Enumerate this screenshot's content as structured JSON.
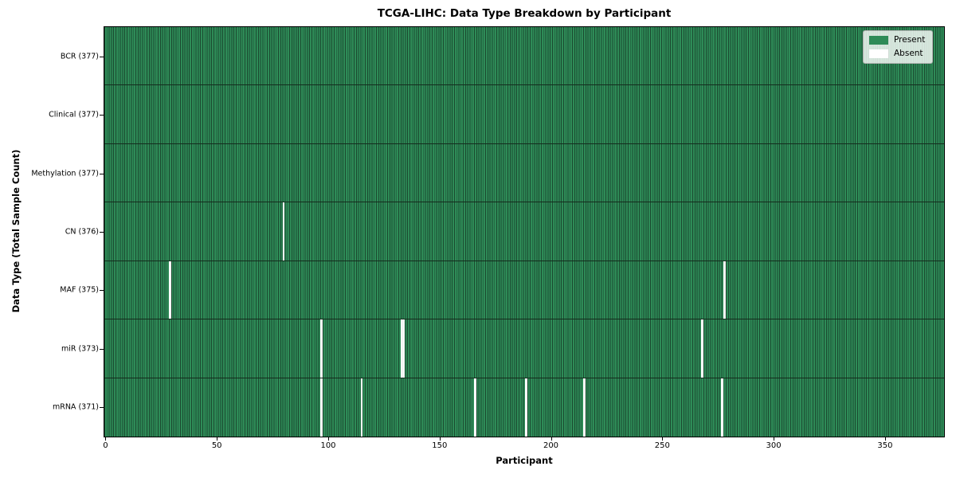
{
  "chart_data": {
    "type": "heatmap",
    "title": "TCGA-LIHC: Data Type Breakdown by Participant",
    "xlabel": "Participant",
    "ylabel": "Data Type (Total Sample Count)",
    "n_participants": 377,
    "xlim": [
      -0.5,
      376.5
    ],
    "x_ticks": [
      0,
      50,
      100,
      150,
      200,
      250,
      300,
      350
    ],
    "grid": "cell-edges",
    "legend": {
      "position": "upper right",
      "entries": [
        "Present",
        "Absent"
      ]
    },
    "colors": {
      "present": "#2e8b57",
      "present_edge": "#1b4a30",
      "absent": "#ffffff",
      "row_divider": "#142c1d"
    },
    "rows": [
      {
        "label": "BCR (377)",
        "data_type": "BCR",
        "total": 377,
        "absent_participants": []
      },
      {
        "label": "Clinical (377)",
        "data_type": "Clinical",
        "total": 377,
        "absent_participants": []
      },
      {
        "label": "Methylation (377)",
        "data_type": "Methylation",
        "total": 377,
        "absent_participants": []
      },
      {
        "label": "CN (376)",
        "data_type": "CN",
        "total": 376,
        "absent_participants": [
          80
        ]
      },
      {
        "label": "MAF (375)",
        "data_type": "MAF",
        "total": 375,
        "absent_participants": [
          29,
          278
        ]
      },
      {
        "label": "miR (373)",
        "data_type": "miR",
        "total": 373,
        "absent_participants": [
          97,
          133,
          134,
          268
        ]
      },
      {
        "label": "mRNA (371)",
        "data_type": "mRNA",
        "total": 371,
        "absent_participants": [
          97,
          115,
          166,
          189,
          215,
          277
        ]
      }
    ]
  }
}
